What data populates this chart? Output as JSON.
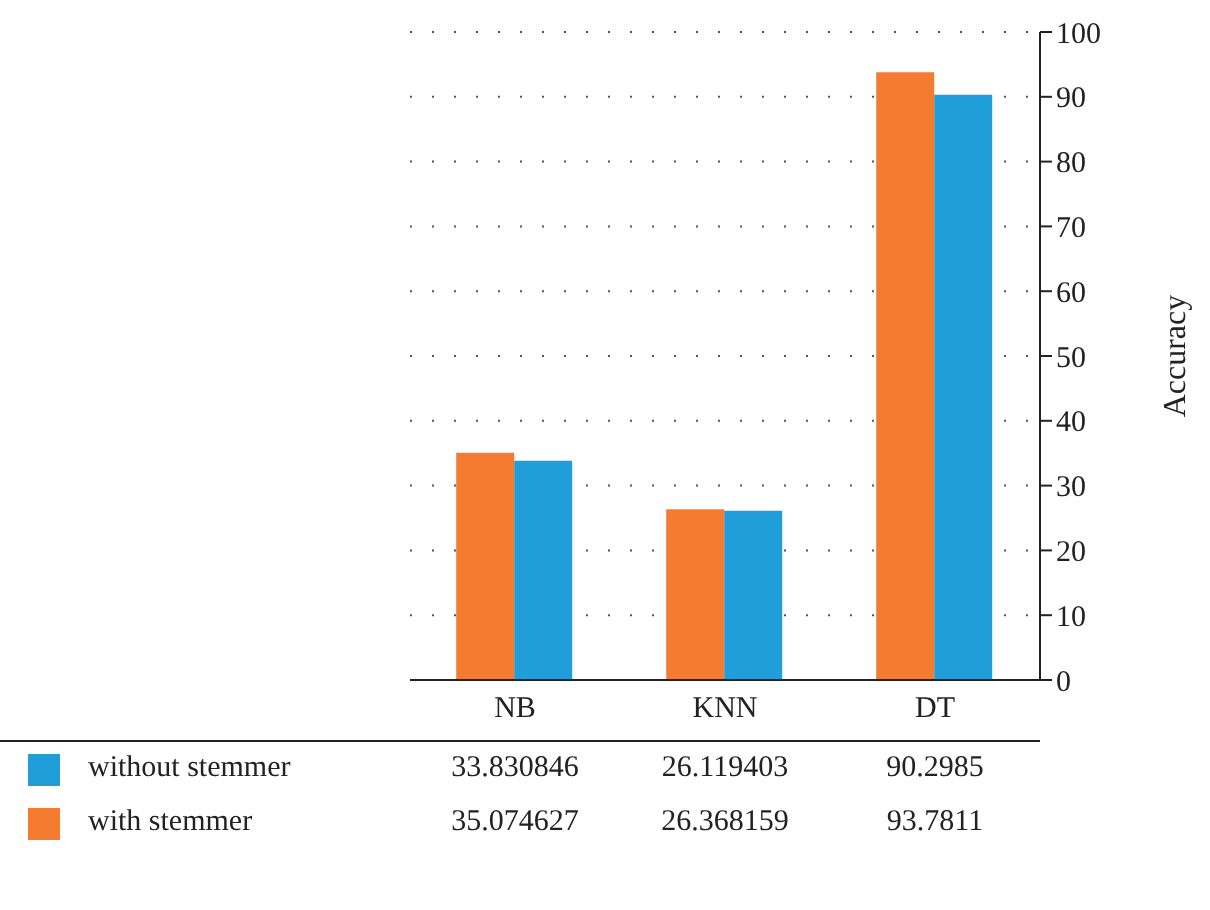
{
  "chart_data": {
    "type": "bar",
    "ylabel": "Accuracy",
    "categories": [
      "NB",
      "KNN",
      "DT"
    ],
    "series": [
      {
        "name": "without stemmer",
        "color": "#1f9ed9",
        "values": [
          33.830846,
          26.119403,
          90.2985
        ]
      },
      {
        "name": "with stemmer",
        "color": "#f47c30",
        "values": [
          35.074627,
          26.368159,
          93.7811
        ]
      }
    ],
    "ylim": [
      0,
      100
    ],
    "yticks": [
      0,
      10,
      20,
      30,
      40,
      50,
      60,
      70,
      80,
      90,
      100
    ],
    "grid": "y",
    "legend": "bottom",
    "data_labels": true
  }
}
